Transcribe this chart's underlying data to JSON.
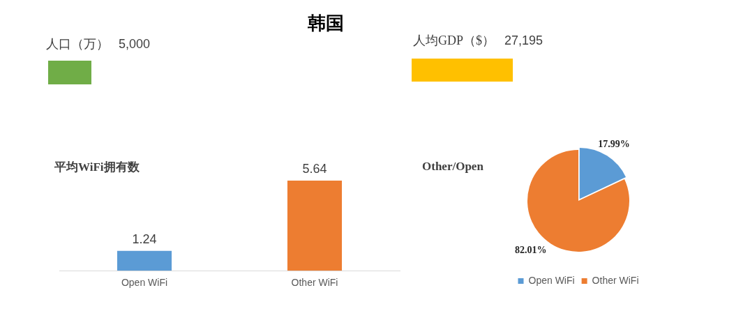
{
  "chart_data": [
    {
      "type": "other",
      "title": "韩国"
    },
    {
      "type": "other",
      "title": "人口（万）",
      "annotations": [
        "5,000"
      ]
    },
    {
      "type": "other",
      "title": "人均GDP（$）",
      "annotations": [
        "27,195"
      ]
    },
    {
      "type": "bar",
      "title": "平均WiFi拥有数",
      "categories": [
        "Open WiFi",
        "Other WiFi"
      ],
      "values": [
        1.24,
        5.64
      ],
      "colors": [
        "#5b9bd5",
        "#ed7d31"
      ],
      "data_labels": true
    },
    {
      "type": "pie",
      "title": "Other/Open",
      "categories": [
        "Open WiFi",
        "Other WiFi"
      ],
      "values": [
        17.99,
        82.01
      ],
      "colors": [
        "#5b9bd5",
        "#ed7d31"
      ],
      "value_labels": [
        "17.99%",
        "82.01%"
      ],
      "legend": "bottom"
    }
  ]
}
